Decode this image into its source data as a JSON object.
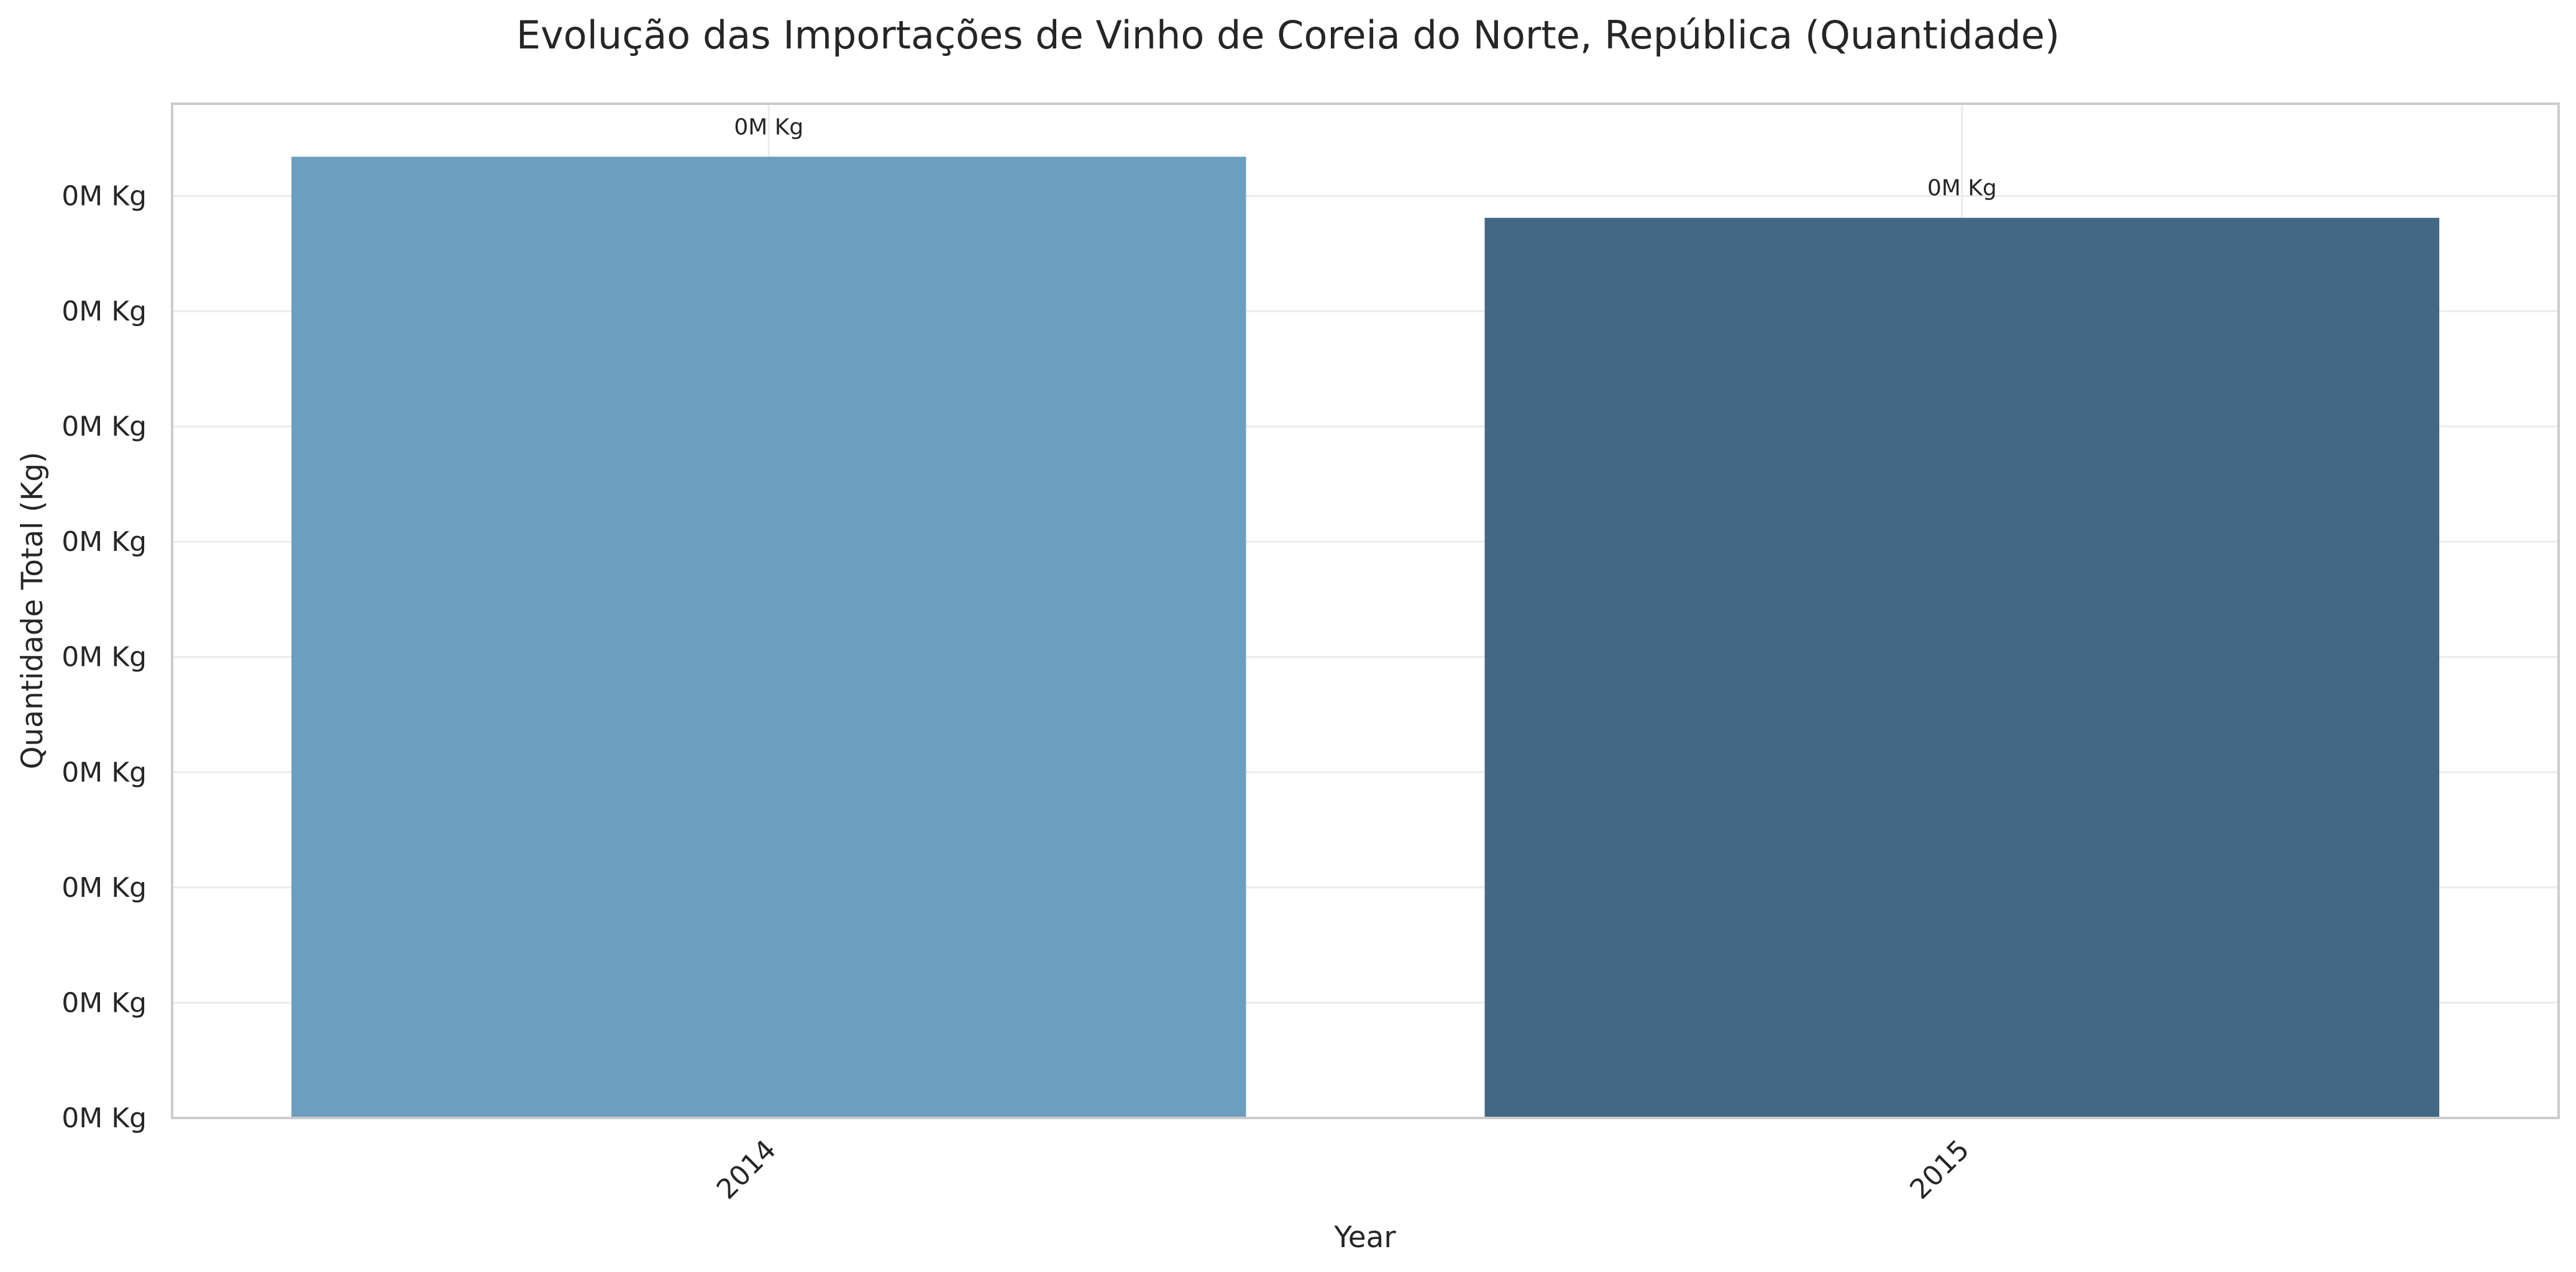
{
  "chart_data": {
    "type": "bar",
    "title": "Evolução das Importações de Vinho de Coreia do Norte, República (Quantidade)",
    "xlabel": "Year",
    "ylabel": "Quantidade Total (Kg)",
    "categories": [
      "2014",
      "2015"
    ],
    "values": [
      8340,
      7810
    ],
    "data_labels": [
      "0M Kg",
      "0M Kg"
    ],
    "ylim": [
      0,
      8800
    ],
    "y_ticks": [
      0,
      1000,
      2000,
      3000,
      4000,
      5000,
      6000,
      7000,
      8000
    ],
    "y_tick_labels": [
      "0M Kg",
      "0M Kg",
      "0M Kg",
      "0M Kg",
      "0M Kg",
      "0M Kg",
      "0M Kg",
      "0M Kg",
      "0M Kg"
    ],
    "colors": [
      "#6c9ebf",
      "#426885"
    ],
    "grid": true,
    "legend": false
  }
}
